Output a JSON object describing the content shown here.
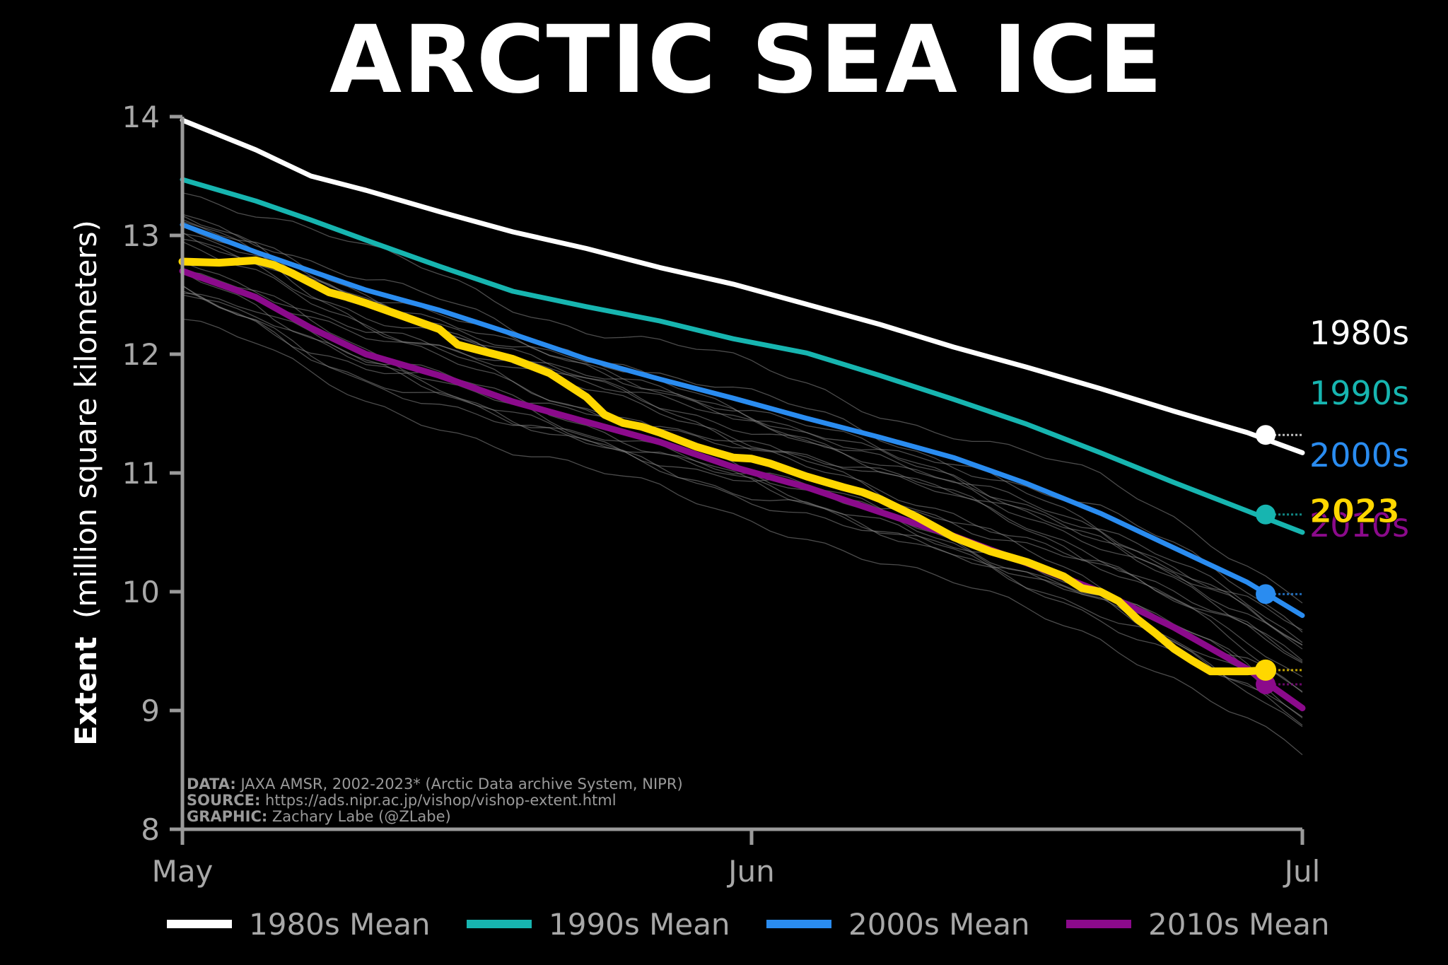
{
  "chart_data": {
    "type": "line",
    "title": "ARCTIC SEA ICE",
    "ylabel_bold": "Extent",
    "ylabel_rest": "(million square kilometers)",
    "xlabel": "",
    "ylim": [
      8,
      14
    ],
    "yticks": [
      8,
      9,
      10,
      11,
      12,
      13,
      14
    ],
    "x_range_days": [
      0,
      61
    ],
    "xticks": [
      {
        "day": 0,
        "label": "May"
      },
      {
        "day": 31,
        "label": "Jun"
      },
      {
        "day": 61,
        "label": "Jul"
      }
    ],
    "grid": false,
    "legend_position": "bottom",
    "credits": [
      {
        "bold": "DATA:",
        "text": " JAXA AMSR, 2002-2023* (Arctic Data archive System, NIPR)"
      },
      {
        "bold": "SOURCE:",
        "text": " https://ads.nipr.ac.jp/vishop/vishop-extent.html"
      },
      {
        "bold": "GRAPHIC:",
        "text": " Zachary Labe (@ZLabe)"
      }
    ],
    "series": [
      {
        "name": "1980s Mean",
        "end_label": "1980s",
        "color": "#ffffff",
        "x": [
          0,
          4,
          7,
          10,
          14,
          18,
          22,
          26,
          30,
          34,
          38,
          42,
          46,
          50,
          54,
          58,
          61
        ],
        "y": [
          13.97,
          13.72,
          13.5,
          13.38,
          13.2,
          13.03,
          12.89,
          12.73,
          12.59,
          12.42,
          12.25,
          12.06,
          11.89,
          11.71,
          11.52,
          11.34,
          11.17
        ],
        "marker": {
          "x": 59,
          "y": 11.32
        }
      },
      {
        "name": "1990s Mean",
        "end_label": "1990s",
        "color": "#17b5b0",
        "x": [
          0,
          4,
          7,
          10,
          14,
          18,
          22,
          26,
          30,
          34,
          38,
          42,
          46,
          50,
          54,
          58,
          61
        ],
        "y": [
          13.47,
          13.29,
          13.13,
          12.96,
          12.74,
          12.53,
          12.4,
          12.28,
          12.13,
          12.01,
          11.82,
          11.62,
          11.41,
          11.17,
          10.92,
          10.68,
          10.5
        ],
        "marker": {
          "x": 59,
          "y": 10.65
        }
      },
      {
        "name": "2000s Mean",
        "end_label": "2000s",
        "color": "#2a8cf0",
        "x": [
          0,
          4,
          7,
          10,
          14,
          18,
          22,
          26,
          30,
          34,
          38,
          42,
          46,
          50,
          54,
          58,
          61
        ],
        "y": [
          13.09,
          12.86,
          12.7,
          12.54,
          12.37,
          12.17,
          11.96,
          11.79,
          11.63,
          11.46,
          11.3,
          11.13,
          10.91,
          10.66,
          10.37,
          10.08,
          9.8
        ],
        "marker": {
          "x": 59,
          "y": 9.98
        }
      },
      {
        "name": "2010s Mean",
        "end_label": "2010s",
        "color": "#8b0a8b",
        "x": [
          0,
          4,
          7,
          10,
          14,
          18,
          22,
          26,
          30,
          34,
          38,
          42,
          46,
          50,
          54,
          58,
          61
        ],
        "y": [
          12.7,
          12.48,
          12.22,
          12.0,
          11.82,
          11.6,
          11.43,
          11.26,
          11.05,
          10.88,
          10.67,
          10.47,
          10.24,
          10.0,
          9.7,
          9.35,
          9.02
        ],
        "marker": {
          "x": 59,
          "y": 9.22
        }
      },
      {
        "name": "2023",
        "end_label": "2023",
        "color": "#ffd700",
        "x": [
          0,
          2,
          4,
          5,
          6,
          7,
          8,
          9,
          10,
          12,
          14,
          15,
          16,
          17,
          18,
          20,
          22,
          23,
          24,
          25,
          26,
          28,
          30,
          31,
          32,
          34,
          36,
          37,
          38,
          40,
          42,
          44,
          46,
          48,
          49,
          50,
          51,
          52,
          53,
          54,
          55,
          56,
          57,
          58,
          59
        ],
        "y": [
          12.78,
          12.77,
          12.79,
          12.75,
          12.68,
          12.6,
          12.52,
          12.48,
          12.43,
          12.32,
          12.21,
          12.08,
          12.04,
          12.0,
          11.96,
          11.84,
          11.64,
          11.49,
          11.42,
          11.39,
          11.34,
          11.22,
          11.13,
          11.12,
          11.08,
          10.97,
          10.88,
          10.84,
          10.78,
          10.63,
          10.46,
          10.34,
          10.25,
          10.13,
          10.03,
          10.0,
          9.92,
          9.77,
          9.65,
          9.52,
          9.42,
          9.33,
          9.33,
          9.33,
          9.34
        ],
        "marker": {
          "x": 59,
          "y": 9.34
        }
      }
    ]
  }
}
